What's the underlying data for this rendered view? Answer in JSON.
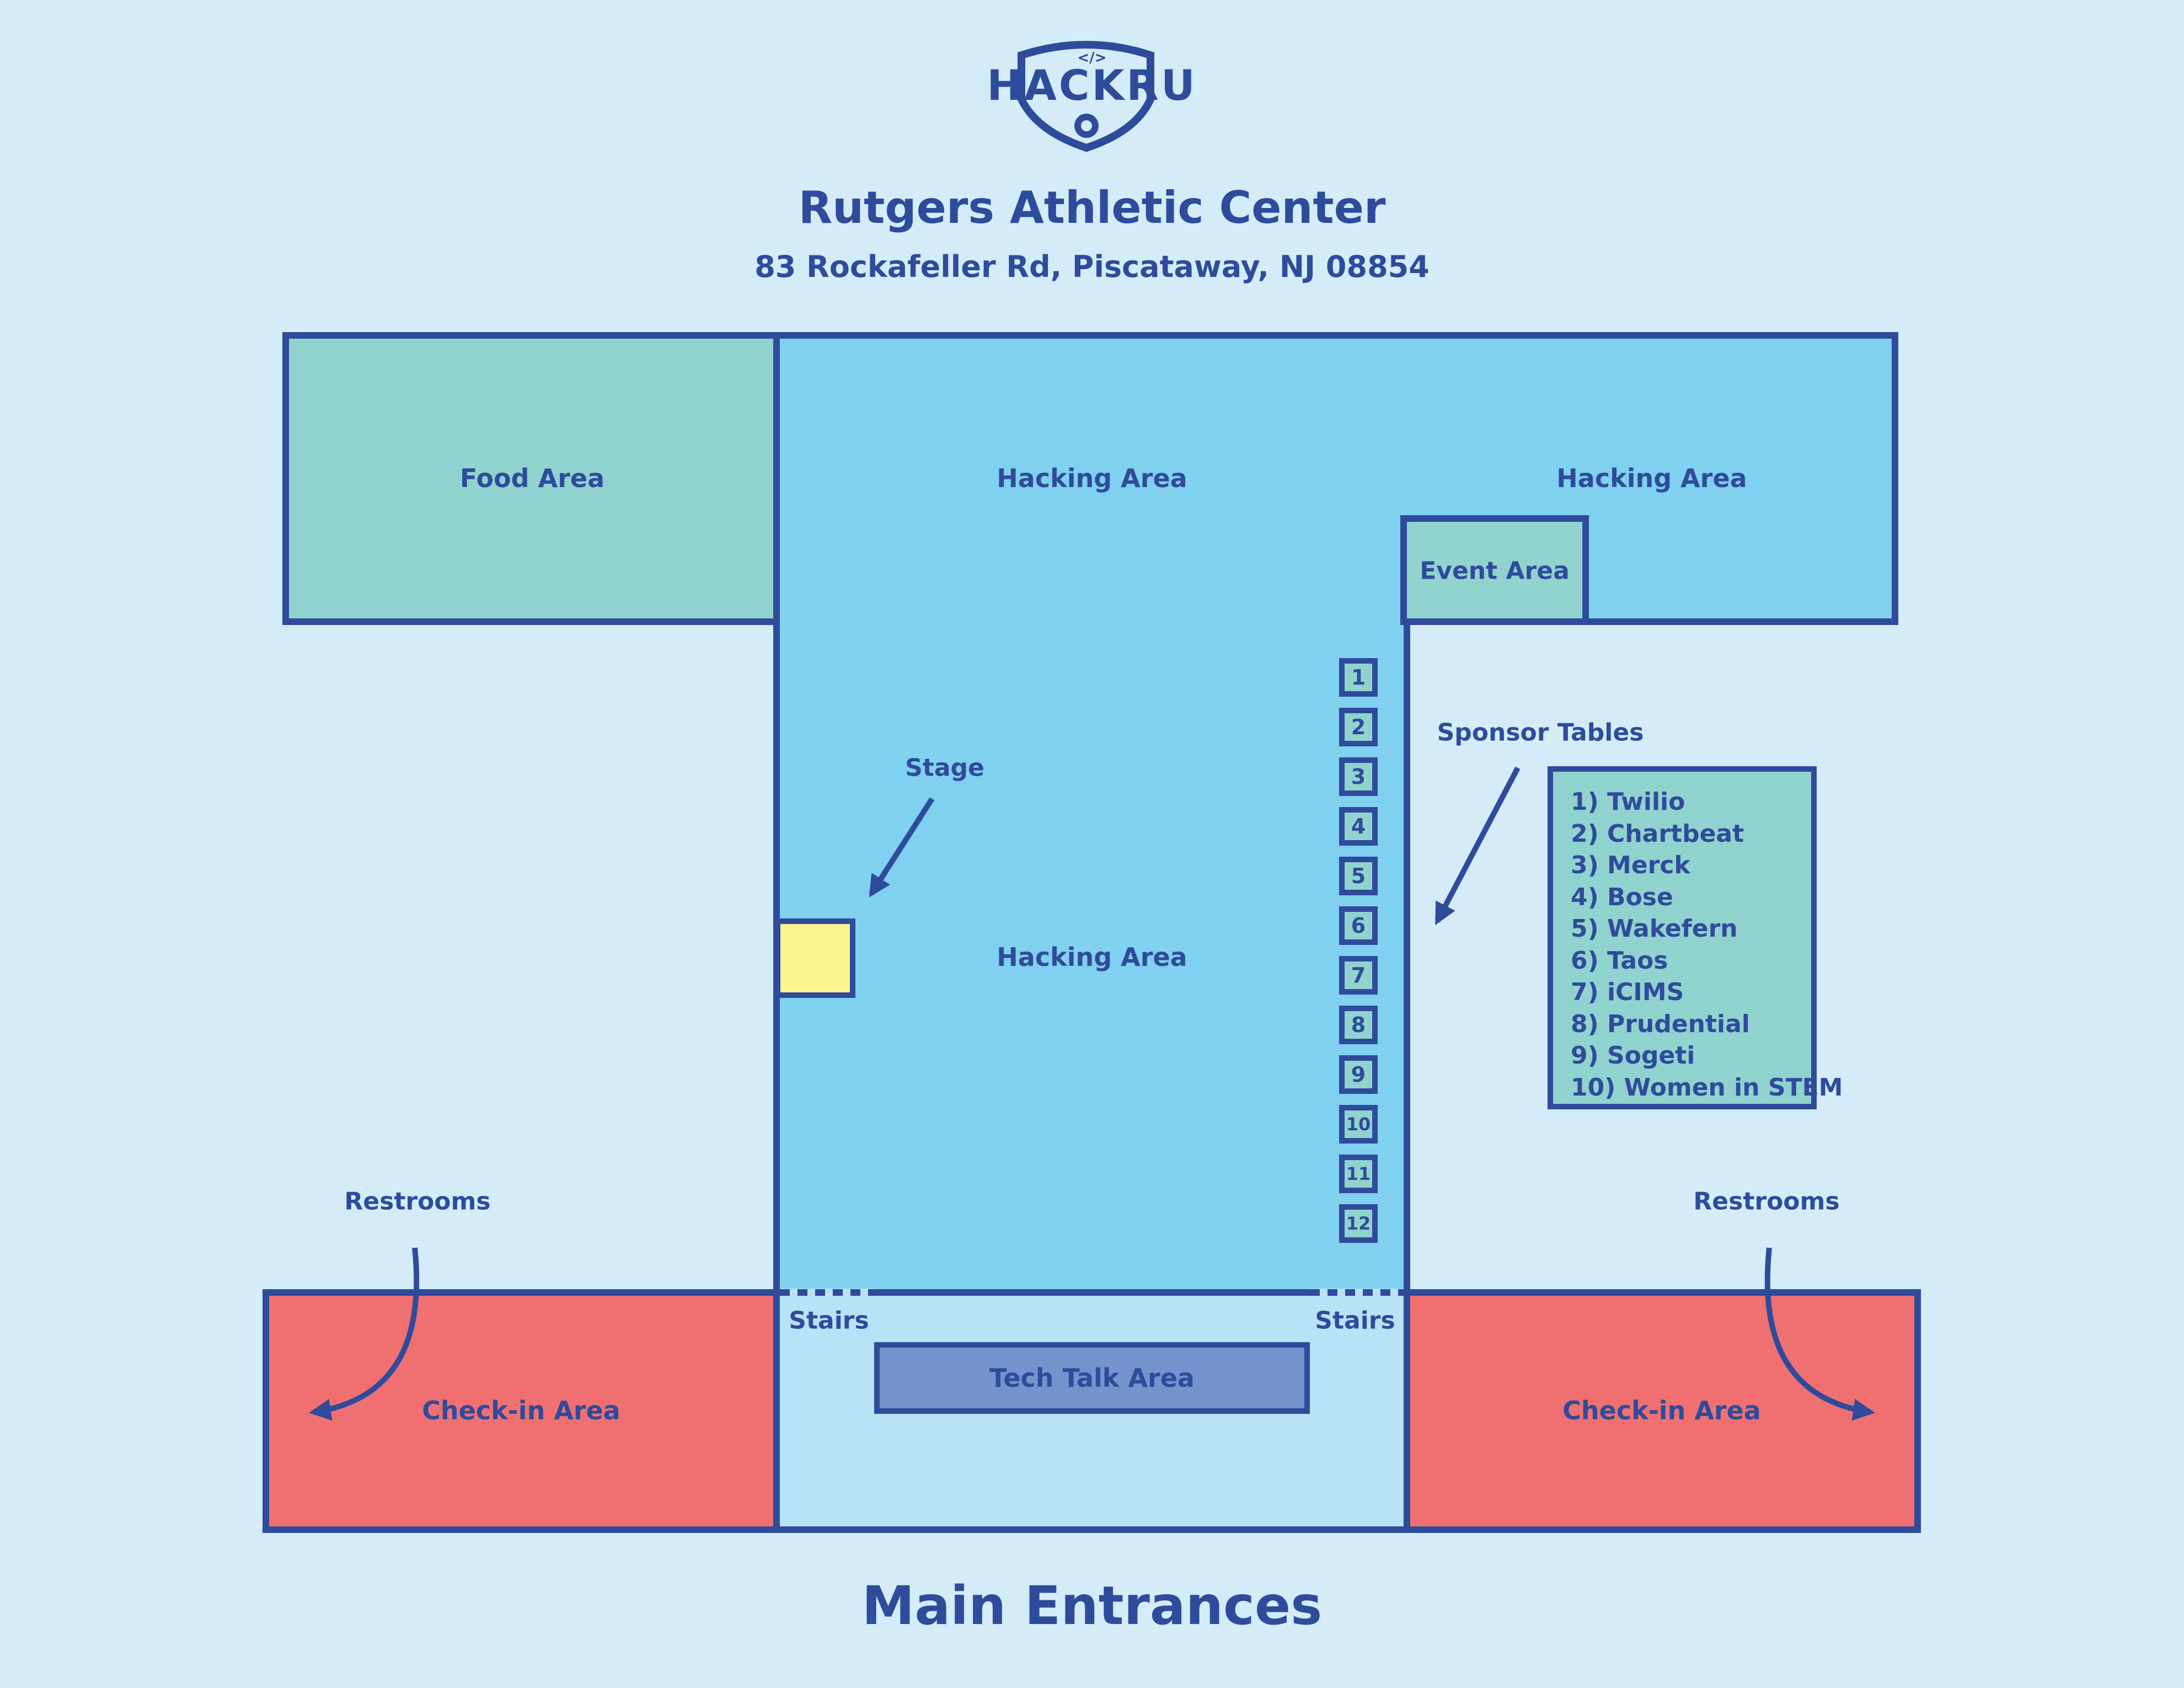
{
  "logo": {
    "text": "HACKRU",
    "code_glyph": "</>"
  },
  "header": {
    "title": "Rutgers Athletic Center",
    "address": "83 Rockafeller Rd, Piscataway, NJ 08854"
  },
  "areas": {
    "food": "Food Area",
    "hacking_top_center": "Hacking Area",
    "hacking_top_right": "Hacking Area",
    "hacking_main": "Hacking Area",
    "event": "Event Area",
    "tech_talk": "Tech Talk Area",
    "checkin_left": "Check-in Area",
    "checkin_right": "Check-in Area"
  },
  "callouts": {
    "stage": "Stage",
    "sponsor_tables": "Sponsor Tables",
    "restrooms_left": "Restrooms",
    "restrooms_right": "Restrooms",
    "stairs_left": "Stairs",
    "stairs_right": "Stairs"
  },
  "tables": [
    "1",
    "2",
    "3",
    "4",
    "5",
    "6",
    "7",
    "8",
    "9",
    "10",
    "11",
    "12"
  ],
  "sponsors": [
    "1) Twilio",
    "2) Chartbeat",
    "3) Merck",
    "4) Bose",
    "5) Wakefern",
    "6) Taos",
    "7) iCIMS",
    "8) Prudential",
    "9) Sogeti",
    "10) Women in STEM"
  ],
  "footer": {
    "main_entrances": "Main Entrances"
  },
  "colors": {
    "background": "#d3ecf8",
    "outline": "#2f4b9b",
    "hacking": "#80d1ef",
    "food_event_sponsor": "#90d3ce",
    "checkin": "#f07072",
    "lobby": "#b8e3f6",
    "tech_talk": "#7493cd",
    "stage": "#fdf38d"
  }
}
